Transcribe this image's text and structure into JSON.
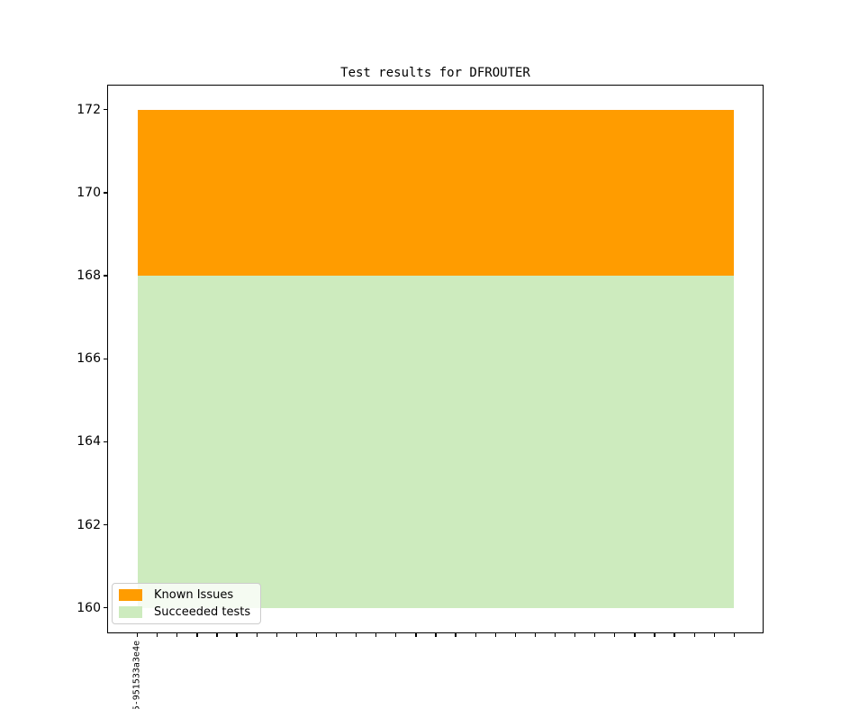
{
  "title": "Test results for DFROUTER",
  "legend": {
    "position": "lower left",
    "items": [
      {
        "label": "Known Issues",
        "color": "#ff9c00"
      },
      {
        "label": "Succeeded tests",
        "color": "#cdebbe"
      }
    ]
  },
  "chart_data": {
    "type": "area",
    "stacked": true,
    "title": "Test results for DFROUTER",
    "xlabel": "",
    "ylabel": "",
    "grid": false,
    "legend_position": "lower left",
    "x_tick_count": 31,
    "x_ticks": {
      "count": 31,
      "labeled_index": 0,
      "label": "5-951533a3e4e",
      "rotation_deg": 90
    },
    "series": [
      {
        "name": "Succeeded tests",
        "color": "#cdebbe",
        "values": [
          168,
          168,
          168,
          168,
          168,
          168,
          168,
          168,
          168,
          168,
          168,
          168,
          168,
          168,
          168,
          168,
          168,
          168,
          168,
          168,
          168,
          168,
          168,
          168,
          168,
          168,
          168,
          168,
          168,
          168,
          168
        ]
      },
      {
        "name": "Known Issues",
        "color": "#ff9c00",
        "values": [
          4,
          4,
          4,
          4,
          4,
          4,
          4,
          4,
          4,
          4,
          4,
          4,
          4,
          4,
          4,
          4,
          4,
          4,
          4,
          4,
          4,
          4,
          4,
          4,
          4,
          4,
          4,
          4,
          4,
          4,
          4
        ]
      }
    ],
    "area_bottom": 160,
    "stack_top": 172,
    "yticks": [
      160,
      162,
      164,
      166,
      168,
      170,
      172
    ],
    "ylim": [
      159.4,
      172.6
    ],
    "xlim": [
      -1.5,
      31.5
    ],
    "colors": {
      "known_issues": "#ff9c00",
      "succeeded": "#cdebbe",
      "axes": "#000000",
      "legend_border": "#cccccc"
    }
  }
}
